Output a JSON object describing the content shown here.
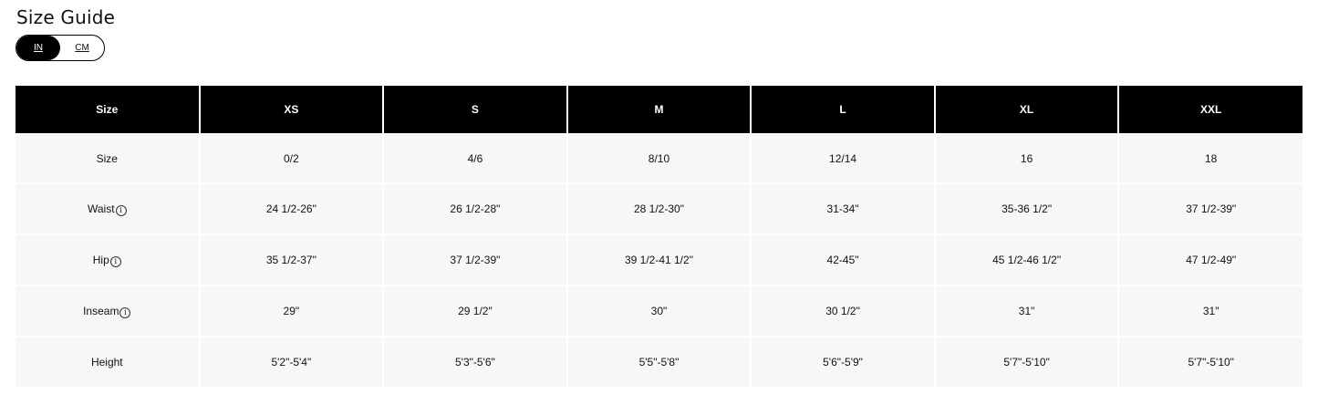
{
  "title": "Size Guide",
  "units": {
    "options": [
      "IN",
      "CM"
    ],
    "selected": "IN"
  },
  "table": {
    "headers": [
      "Size",
      "XS",
      "S",
      "M",
      "L",
      "XL",
      "XXL"
    ],
    "rows": [
      {
        "label": "Size",
        "info": false,
        "values": [
          "0/2",
          "4/6",
          "8/10",
          "12/14",
          "16",
          "18"
        ]
      },
      {
        "label": "Waist",
        "info": true,
        "values": [
          "24 1/2-26\"",
          "26 1/2-28\"",
          "28 1/2-30\"",
          "31-34\"",
          "35-36 1/2\"",
          "37 1/2-39\""
        ]
      },
      {
        "label": "Hip",
        "info": true,
        "values": [
          "35 1/2-37\"",
          "37 1/2-39\"",
          "39 1/2-41 1/2\"",
          "42-45\"",
          "45 1/2-46 1/2\"",
          "47 1/2-49\""
        ]
      },
      {
        "label": "Inseam",
        "info": true,
        "values": [
          "29\"",
          "29 1/2\"",
          "30\"",
          "30 1/2\"",
          "31\"",
          "31\""
        ]
      },
      {
        "label": "Height",
        "info": false,
        "values": [
          "5'2\"-5'4\"",
          "5'3\"-5'6\"",
          "5'5\"-5'8\"",
          "5'6\"-5'9\"",
          "5'7\"-5'10\"",
          "5'7\"-5'10\""
        ]
      }
    ],
    "info_icon": "info-circle-icon"
  }
}
